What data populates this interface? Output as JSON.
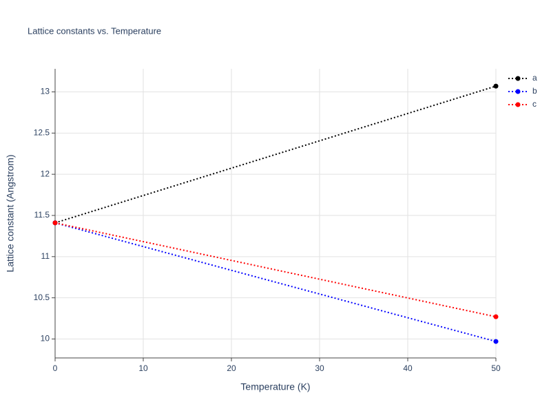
{
  "chart_data": {
    "type": "line",
    "title": "Lattice constants vs. Temperature",
    "x_label": "Temperature (K)",
    "y_label": "Lattice constant (Angstrom)",
    "x": [
      0,
      50
    ],
    "series": [
      {
        "name": "a",
        "color": "#000000",
        "values": [
          11.41,
          13.07
        ]
      },
      {
        "name": "b",
        "color": "#0000ff",
        "values": [
          11.41,
          9.97
        ]
      },
      {
        "name": "c",
        "color": "#ff0000",
        "values": [
          11.41,
          10.27
        ]
      }
    ],
    "xlim": [
      0,
      50
    ],
    "xticks": [
      0,
      10,
      20,
      30,
      40,
      50
    ],
    "ylim": [
      9.77,
      13.28
    ],
    "yticks": [
      10,
      10.5,
      11,
      11.5,
      12,
      12.5,
      13
    ],
    "grid": true,
    "legend": "top-right"
  }
}
